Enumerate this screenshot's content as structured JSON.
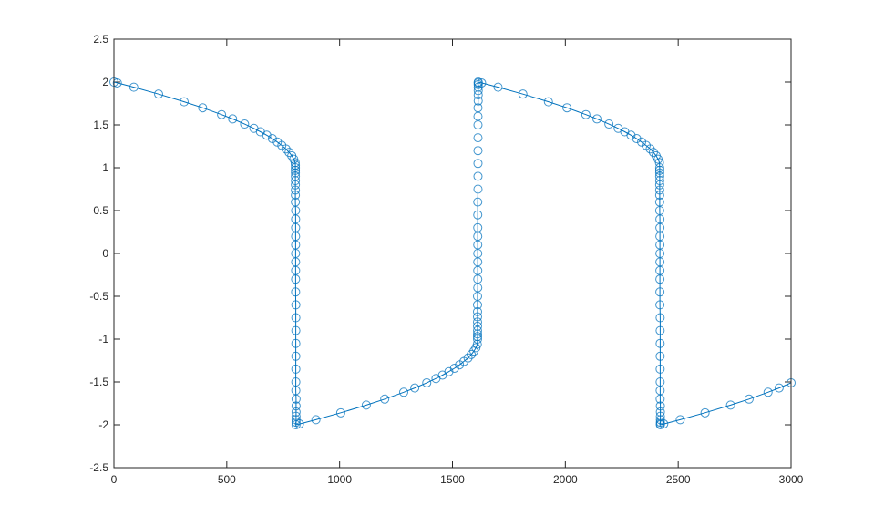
{
  "chart_data": {
    "type": "line",
    "title": "",
    "xlabel": "",
    "ylabel": "",
    "xlim": [
      0,
      3000
    ],
    "ylim": [
      -2.5,
      2.5
    ],
    "grid": false,
    "box": true,
    "marker": "circle",
    "color": "#0072BD",
    "x_ticks": [
      "0",
      "500",
      "1000",
      "1500",
      "2000",
      "2500",
      "3000"
    ],
    "y_ticks": [
      "-2.5",
      "-2",
      "-1.5",
      "-1",
      "-0.5",
      "0",
      "0.5",
      "1",
      "1.5",
      "2",
      "2.5"
    ],
    "series": [
      {
        "x": [
          0,
          15,
          88,
          198,
          311,
          393,
          477,
          526,
          579,
          620,
          649,
          677,
          702,
          724,
          744,
          762,
          776,
          788,
          797,
          803,
          804,
          804,
          804,
          804,
          804,
          804,
          804,
          804,
          804,
          804,
          805,
          805,
          805,
          805,
          805,
          805,
          805,
          805,
          805,
          805,
          806,
          806,
          806,
          806,
          806,
          806,
          806,
          806,
          807,
          807,
          807,
          807,
          807,
          807,
          807,
          822,
          895,
          1005,
          1118,
          1200,
          1284,
          1333,
          1386,
          1427,
          1456,
          1484,
          1509,
          1531,
          1551,
          1569,
          1583,
          1595,
          1604,
          1610,
          1611,
          1611,
          1611,
          1611,
          1611,
          1611,
          1611,
          1611,
          1611,
          1611,
          1612,
          1612,
          1612,
          1612,
          1612,
          1612,
          1612,
          1612,
          1612,
          1612,
          1613,
          1613,
          1613,
          1613,
          1613,
          1613,
          1613,
          1613,
          1614,
          1614,
          1614,
          1614,
          1614,
          1614,
          1614,
          1629,
          1702,
          1812,
          1925,
          2007,
          2091,
          2140,
          2193,
          2234,
          2263,
          2291,
          2316,
          2338,
          2358,
          2376,
          2390,
          2402,
          2411,
          2417,
          2418,
          2418,
          2418,
          2418,
          2418,
          2418,
          2418,
          2418,
          2418,
          2418,
          2419,
          2419,
          2419,
          2419,
          2419,
          2419,
          2419,
          2419,
          2419,
          2419,
          2420,
          2420,
          2420,
          2420,
          2420,
          2420,
          2420,
          2420,
          2421,
          2421,
          2421,
          2421,
          2421,
          2421,
          2421,
          2436,
          2509,
          2619,
          2732,
          2814,
          2898,
          2947,
          3000
        ],
        "y": [
          2,
          1.99,
          1.94,
          1.86,
          1.77,
          1.7,
          1.62,
          1.57,
          1.51,
          1.46,
          1.42,
          1.38,
          1.34,
          1.3,
          1.26,
          1.22,
          1.18,
          1.14,
          1.1,
          1.06,
          1.03,
          1.0,
          0.97,
          0.94,
          0.9,
          0.85,
          0.8,
          0.74,
          0.68,
          0.6,
          0.5,
          0.4,
          0.3,
          0.2,
          0.1,
          0,
          -0.1,
          -0.2,
          -0.3,
          -0.45,
          -0.6,
          -0.75,
          -0.9,
          -1.05,
          -1.2,
          -1.35,
          -1.5,
          -1.6,
          -1.7,
          -1.78,
          -1.85,
          -1.9,
          -1.94,
          -1.97,
          -2.0,
          -1.99,
          -1.94,
          -1.86,
          -1.77,
          -1.7,
          -1.62,
          -1.57,
          -1.51,
          -1.46,
          -1.42,
          -1.38,
          -1.34,
          -1.3,
          -1.26,
          -1.22,
          -1.18,
          -1.14,
          -1.1,
          -1.06,
          -1.0,
          -0.97,
          -0.94,
          -0.9,
          -0.85,
          -0.8,
          -0.74,
          -0.68,
          -0.6,
          -0.5,
          -0.4,
          -0.3,
          -0.2,
          -0.1,
          0,
          0.1,
          0.2,
          0.3,
          0.45,
          0.6,
          0.75,
          0.9,
          1.05,
          1.2,
          1.35,
          1.5,
          1.6,
          1.7,
          1.78,
          1.85,
          1.9,
          1.94,
          1.97,
          1.99,
          2.0,
          1.99,
          1.94,
          1.86,
          1.77,
          1.7,
          1.62,
          1.57,
          1.51,
          1.46,
          1.42,
          1.38,
          1.34,
          1.3,
          1.26,
          1.22,
          1.18,
          1.14,
          1.1,
          1.06,
          1.0,
          0.97,
          0.94,
          0.9,
          0.85,
          0.8,
          0.74,
          0.68,
          0.6,
          0.5,
          0.4,
          0.3,
          0.2,
          0.1,
          0,
          -0.1,
          -0.2,
          -0.3,
          -0.45,
          -0.6,
          -0.75,
          -0.9,
          -1.05,
          -1.2,
          -1.35,
          -1.5,
          -1.6,
          -1.7,
          -1.78,
          -1.85,
          -1.9,
          -1.94,
          -1.97,
          -1.99,
          -2.0,
          -1.99,
          -1.94,
          -1.86,
          -1.77,
          -1.7,
          -1.62,
          -1.57,
          -1.51
        ]
      }
    ]
  }
}
